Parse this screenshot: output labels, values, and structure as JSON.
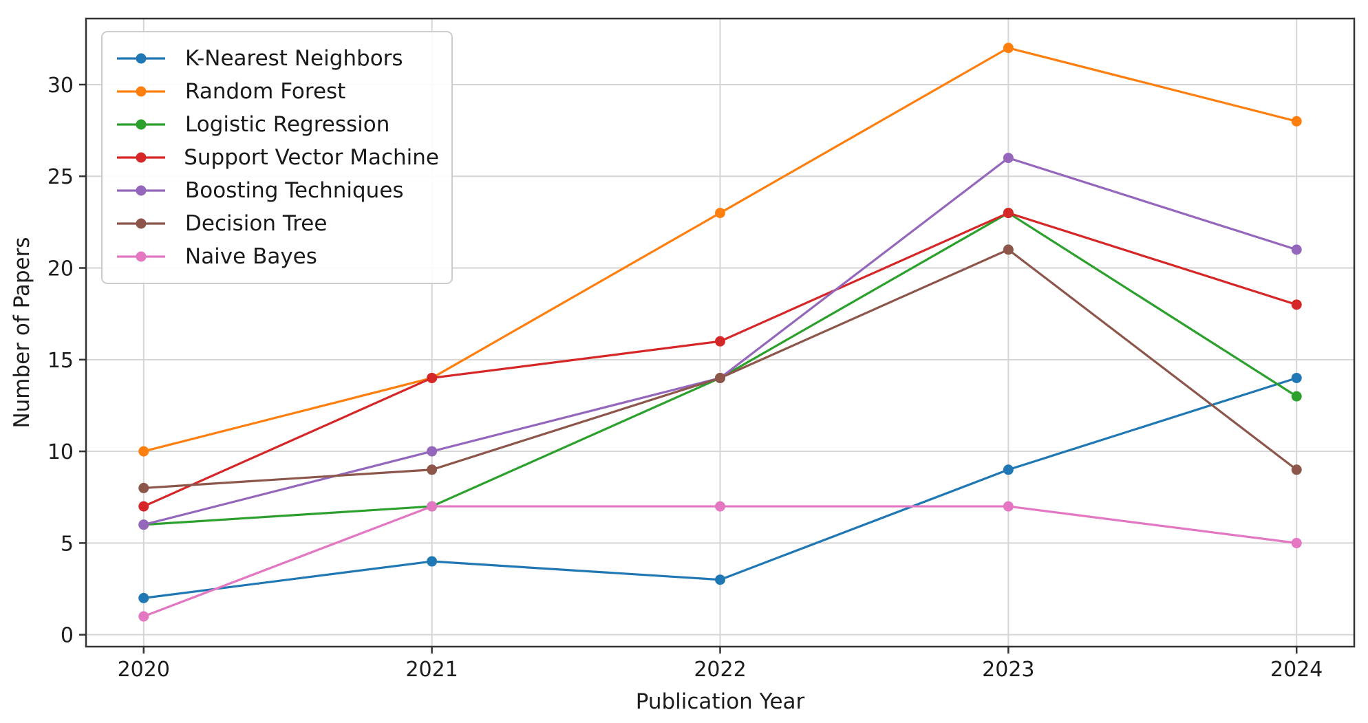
{
  "figure": {
    "background_color": "#ffffff"
  },
  "chart_data": {
    "type": "line",
    "title": "",
    "xlabel": "Publication Year",
    "ylabel": "Number of Papers",
    "x": [
      2020,
      2021,
      2022,
      2023,
      2024
    ],
    "x_tick_labels": [
      "2020",
      "2021",
      "2022",
      "2023",
      "2024"
    ],
    "y_ticks": [
      0,
      5,
      10,
      15,
      20,
      25,
      30
    ],
    "xlim": [
      2019.8,
      2024.2
    ],
    "ylim": [
      -0.65,
      33.6
    ],
    "grid": true,
    "legend_position": "upper-left",
    "series": [
      {
        "name": "K-Nearest Neighbors",
        "color": "#1f77b4",
        "values": [
          2,
          4,
          3,
          9,
          14
        ]
      },
      {
        "name": "Random Forest",
        "color": "#ff7f0e",
        "values": [
          10,
          14,
          23,
          32,
          28
        ]
      },
      {
        "name": "Logistic Regression",
        "color": "#2ca02c",
        "values": [
          6,
          7,
          14,
          23,
          13
        ]
      },
      {
        "name": "Support Vector Machine",
        "color": "#d62728",
        "values": [
          7,
          14,
          16,
          23,
          18
        ]
      },
      {
        "name": "Boosting Techniques",
        "color": "#9467bd",
        "values": [
          6,
          10,
          14,
          26,
          21
        ]
      },
      {
        "name": "Decision Tree",
        "color": "#8c564b",
        "values": [
          8,
          9,
          14,
          21,
          9
        ]
      },
      {
        "name": "Naive Bayes",
        "color": "#e377c2",
        "values": [
          1,
          7,
          7,
          7,
          5
        ]
      }
    ],
    "style": {
      "grid_color": "#d5d5d5",
      "spine_color": "#333333",
      "tick_color": "#333333",
      "tick_label_color": "#1c1c1c",
      "marker": "circle"
    }
  }
}
